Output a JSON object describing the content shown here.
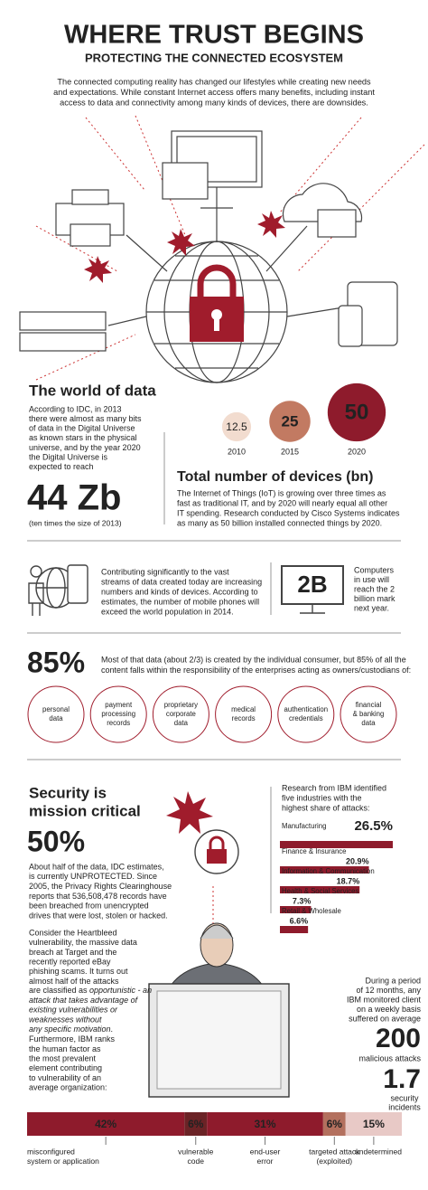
{
  "header": {
    "title": "WHERE TRUST BEGINS",
    "subtitle": "PROTECTING THE CONNECTED ECOSYSTEM",
    "intro": [
      "The connected computing reality has changed our lifestyles while creating new needs",
      "and expectations. While constant Internet access offers many benefits, including instant",
      "access to data and connectivity among many kinds of devices, there are downsides."
    ]
  },
  "world": {
    "title": "The world of data",
    "text": [
      "According to IDC, in 2013",
      "there were almost as many bits",
      "of data in the Digital Universe",
      "as known stars in the physical",
      "universe, and by the year 2020",
      "the Digital Universe is",
      "expected to reach"
    ],
    "figure": "44 Zb",
    "note": "(ten times the size of 2013)"
  },
  "devices": {
    "type": "bubble",
    "title": "Total number of devices (bn)",
    "categories": [
      "2010",
      "2015",
      "2020"
    ],
    "values": [
      12.5,
      25,
      50
    ],
    "colors": [
      "#f2dccf",
      "#c27a62",
      "#8e1b2c"
    ],
    "text": [
      "The Internet of Things (IoT) is growing over three times as",
      "fast as traditional IT, and by 2020 will nearly equal all other",
      "IT spending. Research conducted by Cisco Systems indicates",
      "as many as 50 billion installed connected things by 2020."
    ]
  },
  "phones": {
    "text": [
      "Contributing significantly to the vast",
      "streams of data created today are increasing",
      "numbers and kinds of devices. According to",
      "estimates, the number of mobile phones will",
      "exceed the world population in 2014."
    ]
  },
  "computers": {
    "figure": "2B",
    "text": [
      "Computers",
      "in use will",
      "reach the 2",
      "billion mark",
      "next year."
    ]
  },
  "enterprise": {
    "figure": "85%",
    "text": [
      "Most of that data (about 2/3) is created by the individual consumer, but 85% of all the",
      "content falls within the responsibility of the enterprises acting as owners/custodians of:"
    ],
    "items": [
      [
        "personal",
        "data"
      ],
      [
        "payment",
        "processing",
        "records"
      ],
      [
        "proprietary",
        "corporate",
        "data"
      ],
      [
        "medical",
        "records"
      ],
      [
        "authentication",
        "credentials"
      ],
      [
        "financial",
        "& banking",
        "data"
      ]
    ]
  },
  "security": {
    "title": [
      "Security is",
      "mission critical"
    ],
    "figure": "50%",
    "highlight": [
      "About half of the data, IDC estimates,",
      "is currently UNPROTECTED. Since",
      "2005, the Privacy Rights Clearinghouse",
      "reports that 536,508,478 records have",
      "been breached from unencrypted",
      "drives that were lost, stolen or hacked."
    ],
    "text": [
      "Consider the Heartbleed",
      "vulnerability, the massive data",
      "breach at Target and the",
      "recently reported eBay",
      "phishing scams. It turns out",
      "almost half of the attacks",
      [
        "are classified as ",
        {
          "text": "opportunistic - an",
          "style": "italic"
        }
      ],
      [
        {
          "text": "attack that takes advantage of",
          "style": "italic"
        }
      ],
      [
        {
          "text": "existing vulnerabilities or",
          "style": "italic"
        }
      ],
      [
        {
          "text": "weaknesses without",
          "style": "italic"
        }
      ],
      [
        {
          "text": "any specific motivation",
          "style": "italic"
        },
        "."
      ],
      "Furthermore, IBM ranks",
      "the human factor as",
      "the most prevalent",
      "element contributing",
      "to vulnerability of an",
      "average organization:"
    ]
  },
  "industries": {
    "type": "bar",
    "intro": [
      "Research from IBM identified",
      "five industries with the",
      "highest share of attacks:"
    ],
    "categories": [
      "Manufacturing",
      "Finance & Insurance",
      "Information & Communication",
      "Health & Social Services",
      "Retail & Wholesale"
    ],
    "values": [
      26.5,
      20.9,
      18.7,
      7.3,
      6.6
    ],
    "value_labels": [
      "26.5%",
      "20.9%",
      "18.7%",
      "7.3%",
      "6.6%"
    ],
    "color": "#8e1b2c"
  },
  "ibm": {
    "text": [
      "During a period",
      "of 12 months, any",
      "IBM monitored client",
      "on a weekly basis",
      "suffered on average"
    ],
    "attacks": "200",
    "attacks_label": "malicious attacks",
    "incidents": "1.7",
    "incidents_label": [
      "security",
      "incidents"
    ]
  },
  "causes": {
    "type": "stacked-bar",
    "categories": [
      [
        "misconfigured",
        "system or application"
      ],
      [
        "vulnerable",
        "code"
      ],
      [
        "end-user",
        "error"
      ],
      [
        "targeted attack",
        "(exploited)"
      ],
      [
        "undetermined"
      ]
    ],
    "values": [
      42,
      6,
      31,
      6,
      15
    ],
    "value_labels": [
      "42%",
      "6%",
      "31%",
      "6%",
      "15%"
    ],
    "colors": [
      "#8e1b2c",
      "#6b2326",
      "#8e1b2c",
      "#b3705e",
      "#e8c9c6"
    ]
  }
}
